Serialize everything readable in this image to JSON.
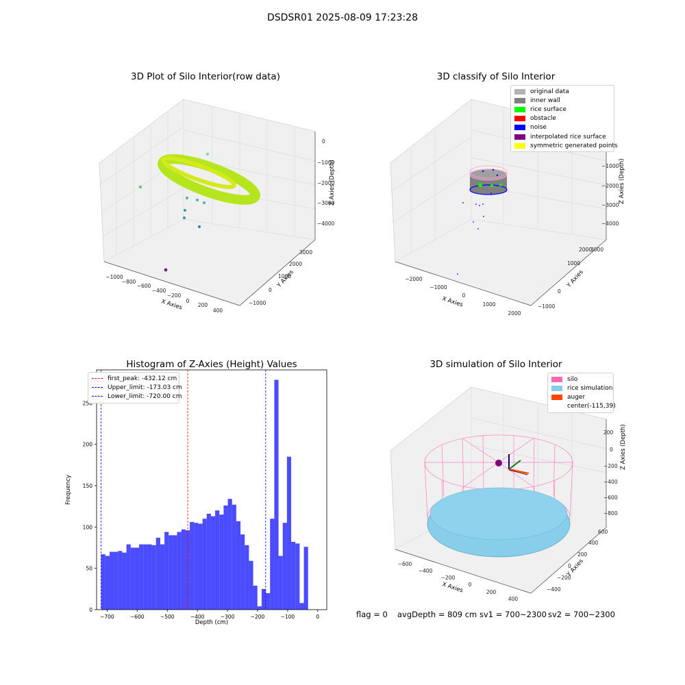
{
  "figure": {
    "suptitle": "DSDSR01 2025-08-09 17:23:28",
    "footer": {
      "flag": "flag = 0",
      "avg_depth": "avgDepth = 809 cm",
      "sv1": "sv1 = 700~2300",
      "sv2": "sv2 = 700~2300"
    }
  },
  "panel_raw": {
    "title": "3D Plot of Silo Interior(row data)",
    "xlabel": "X Axies",
    "ylabel": "Y Axies",
    "zlabel": "Z Axies (Depth)",
    "x_ticks": [
      "−1000",
      "−800",
      "−600",
      "−400",
      "−200",
      "0",
      "200",
      "400"
    ],
    "y_ticks": [
      "−1000",
      "0",
      "1000",
      "2000",
      "3000"
    ],
    "z_ticks": [
      "0",
      "−1000",
      "−2000",
      "−3000",
      "−4000"
    ]
  },
  "panel_classify": {
    "title": "3D classify of Silo Interior",
    "xlabel": "X Axies",
    "ylabel": "Y Axies",
    "zlabel": "Z Axies (Depth)",
    "x_ticks": [
      "−2000",
      "−1000",
      "0",
      "1000",
      "2000"
    ],
    "y_ticks": [
      "−1000",
      "0",
      "1000",
      "2000",
      "3000"
    ],
    "z_ticks": [
      "0",
      "−1000",
      "−2000",
      "−3000",
      "−4000"
    ],
    "legend": [
      {
        "label": "original data",
        "color": "#b3b3b3"
      },
      {
        "label": "inner wall",
        "color": "#808080"
      },
      {
        "label": "rice surface",
        "color": "#00ff00"
      },
      {
        "label": "obstacle",
        "color": "#ff0000"
      },
      {
        "label": "noise",
        "color": "#0000ff"
      },
      {
        "label": "interpolated rice surface",
        "color": "#800080"
      },
      {
        "label": "symmetric generated points",
        "color": "#ffff00"
      }
    ]
  },
  "panel_sim": {
    "title": "3D simulation of Silo Interior",
    "xlabel": "X Axies",
    "ylabel": "Y Axies",
    "zlabel": "Z Axies (Depth)",
    "x_ticks": [
      "−600",
      "−400",
      "−200",
      "0",
      "200",
      "400"
    ],
    "y_ticks": [
      "600",
      "400",
      "200",
      "0",
      "−200",
      "−400"
    ],
    "z_ticks": [
      "200",
      "0",
      "−200",
      "−400",
      "−600",
      "−800"
    ],
    "legend": [
      {
        "label": "silo",
        "color": "#ff69b4"
      },
      {
        "label": "rice simulation",
        "color": "#87ceeb"
      },
      {
        "label": "auger",
        "color": "#ff4500"
      },
      {
        "label": "center(-115,39)",
        "color": ""
      }
    ]
  },
  "chart_data": [
    {
      "type": "bar",
      "title": "Histogram of Z-Axies (Height) Values",
      "xlabel": "Depth (cm)",
      "ylabel": "Frequency",
      "xlim": [
        -735,
        30
      ],
      "ylim": [
        0,
        290
      ],
      "x_ticks": [
        -700,
        -600,
        -500,
        -400,
        -300,
        -200,
        -100,
        0
      ],
      "y_ticks": [
        0,
        50,
        100,
        150,
        200,
        250
      ],
      "bin_start": -720,
      "bin_width": 14.04,
      "color": "#0000ff",
      "values": [
        67,
        65,
        70,
        70,
        71,
        69,
        79,
        75,
        75,
        79,
        79,
        79,
        78,
        87,
        79,
        94,
        90,
        90,
        94,
        97,
        96,
        106,
        105,
        104,
        110,
        116,
        113,
        120,
        115,
        126,
        134,
        127,
        107,
        91,
        78,
        59,
        29,
        4,
        25,
        20,
        110,
        278,
        65,
        105,
        185,
        82,
        80,
        8,
        76
      ],
      "vlines": [
        {
          "label": "first_peak: -432.12 cm",
          "x": -432.12,
          "color": "#ff0000"
        },
        {
          "label": "Upper_limit: -173.03 cm",
          "x": -173.03,
          "color": "#0000ff"
        },
        {
          "label": "Lower_limit: -720.00 cm",
          "x": -720.0,
          "color": "#0000ff"
        }
      ],
      "legend_position": "top-left"
    }
  ]
}
